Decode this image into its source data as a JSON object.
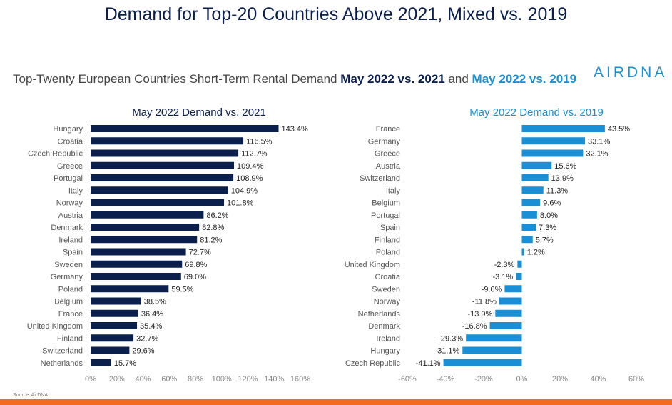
{
  "title": "Demand for Top-20 Countries Above 2021, Mixed vs. 2019",
  "subtitle": {
    "prefix": "Top-Twenty European Countries Short-Term Rental Demand ",
    "bold1": "May 2022 vs. 2021",
    "middle": " and ",
    "bold2": "May 2022 vs. 2019"
  },
  "logo": "AIRDNA",
  "source": "Source: AirDNA",
  "colors": {
    "left_bar": "#0b1f4d",
    "right_bar": "#1a8fd6",
    "accent_bar": "#f36b21"
  },
  "chart_data": [
    {
      "type": "bar",
      "orientation": "horizontal",
      "title": "May 2022 Demand vs. 2021",
      "categories": [
        "Hungary",
        "Croatia",
        "Czech Republic",
        "Greece",
        "Portugal",
        "Italy",
        "Norway",
        "Austria",
        "Denmark",
        "Ireland",
        "Spain",
        "Sweden",
        "Germany",
        "Poland",
        "Belgium",
        "France",
        "United Kingdom",
        "Finland",
        "Switzerland",
        "Netherlands"
      ],
      "values": [
        143.4,
        116.5,
        112.7,
        109.4,
        108.9,
        104.9,
        101.8,
        86.2,
        82.8,
        81.2,
        72.7,
        69.8,
        69.0,
        59.5,
        38.5,
        36.4,
        35.4,
        32.7,
        29.6,
        15.7
      ],
      "value_labels": [
        "143.4%",
        "116.5%",
        "112.7%",
        "109.4%",
        "108.9%",
        "104.9%",
        "101.8%",
        "86.2%",
        "82.8%",
        "81.2%",
        "72.7%",
        "69.8%",
        "69.0%",
        "59.5%",
        "38.5%",
        "36.4%",
        "35.4%",
        "32.7%",
        "29.6%",
        "15.7%"
      ],
      "xlim": [
        0,
        160
      ],
      "ticks": [
        "0%",
        "20%",
        "40%",
        "60%",
        "80%",
        "100%",
        "120%",
        "140%",
        "160%"
      ],
      "grid": false
    },
    {
      "type": "bar",
      "orientation": "horizontal",
      "title": "May 2022 Demand vs. 2019",
      "categories": [
        "France",
        "Germany",
        "Greece",
        "Austria",
        "Switzerland",
        "Italy",
        "Belgium",
        "Portugal",
        "Spain",
        "Finland",
        "Poland",
        "United Kingdom",
        "Croatia",
        "Sweden",
        "Norway",
        "Netherlands",
        "Denmark",
        "Ireland",
        "Hungary",
        "Czech Republic"
      ],
      "values": [
        43.5,
        33.1,
        32.1,
        15.6,
        13.9,
        11.3,
        9.6,
        8.0,
        7.3,
        5.7,
        1.2,
        -2.3,
        -3.1,
        -9.0,
        -11.8,
        -13.9,
        -16.8,
        -29.3,
        -31.1,
        -41.1
      ],
      "value_labels": [
        "43.5%",
        "33.1%",
        "32.1%",
        "15.6%",
        "13.9%",
        "11.3%",
        "9.6%",
        "8.0%",
        "7.3%",
        "5.7%",
        "1.2%",
        "-2.3%",
        "-3.1%",
        "-9.0%",
        "-11.8%",
        "-13.9%",
        "-16.8%",
        "-29.3%",
        "-31.1%",
        "-41.1%"
      ],
      "xlim": [
        -60,
        60
      ],
      "ticks": [
        "-60%",
        "-40%",
        "-20%",
        "0%",
        "20%",
        "40%",
        "60%"
      ],
      "grid": false
    }
  ]
}
